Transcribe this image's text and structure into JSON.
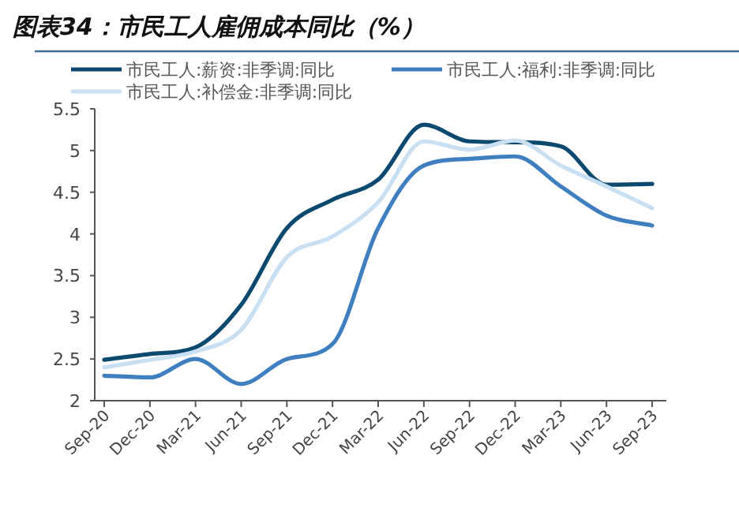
{
  "chart_data": {
    "type": "line",
    "title": "图表34：市民工人雇佣成本同比（%）",
    "categories": [
      "Sep-20",
      "Dec-20",
      "Mar-21",
      "Jun-21",
      "Sep-21",
      "Dec-21",
      "Mar-22",
      "Jun-22",
      "Sep-22",
      "Dec-22",
      "Mar-23",
      "Jun-23",
      "Sep-23"
    ],
    "series": [
      {
        "name": "市民工人:薪资:非季调:同比",
        "color": "#0b4a6e",
        "values": [
          2.49,
          2.56,
          2.64,
          3.15,
          4.07,
          4.41,
          4.65,
          5.31,
          5.11,
          5.1,
          5.05,
          4.59,
          4.6
        ]
      },
      {
        "name": "市民工人:福利:非季调:同比",
        "color": "#3f7fc0",
        "values": [
          2.3,
          2.28,
          2.5,
          2.2,
          2.5,
          2.68,
          4.07,
          4.82,
          4.9,
          4.93,
          4.57,
          4.22,
          4.1
        ]
      },
      {
        "name": "市民工人:补偿金:非季调:同比",
        "color": "#c9dff2",
        "values": [
          2.4,
          2.49,
          2.59,
          2.85,
          3.72,
          3.97,
          4.38,
          5.11,
          5.01,
          5.12,
          4.82,
          4.57,
          4.31
        ]
      }
    ],
    "ylim": [
      2,
      5.5
    ],
    "yticks": [
      2,
      2.5,
      3,
      3.5,
      4,
      4.5,
      5,
      5.5
    ],
    "legend": "top",
    "grid": false
  }
}
